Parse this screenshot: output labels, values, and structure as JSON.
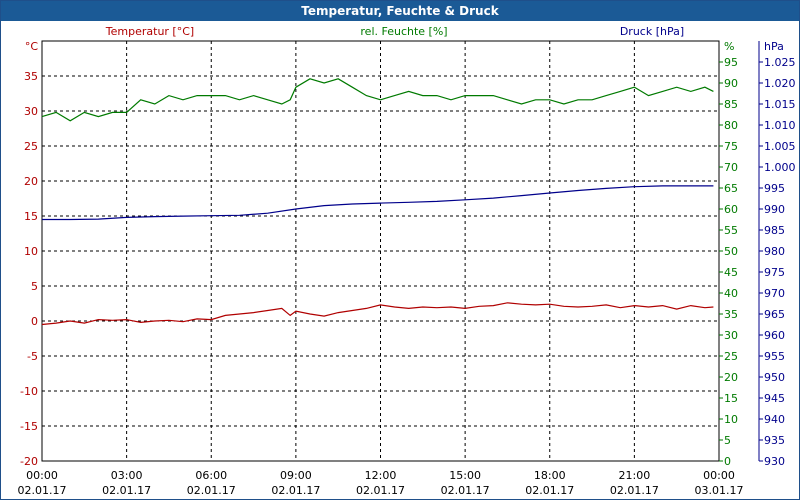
{
  "window": {
    "title": "Temperatur, Feuchte & Druck"
  },
  "colors": {
    "temperature": "#b00000",
    "humidity": "#007a00",
    "pressure": "#00008b",
    "grid": "#000000",
    "titlebar": "#1b5a96"
  },
  "chart_data": {
    "type": "line",
    "title": "Temperatur, Feuchte & Druck",
    "grid": true,
    "x": {
      "ticks": [
        {
          "time": "00:00",
          "date": "02.01.17"
        },
        {
          "time": "03:00",
          "date": "02.01.17"
        },
        {
          "time": "06:00",
          "date": "02.01.17"
        },
        {
          "time": "09:00",
          "date": "02.01.17"
        },
        {
          "time": "12:00",
          "date": "02.01.17"
        },
        {
          "time": "15:00",
          "date": "02.01.17"
        },
        {
          "time": "18:00",
          "date": "02.01.17"
        },
        {
          "time": "21:00",
          "date": "02.01.17"
        },
        {
          "time": "00:00",
          "date": "03.01.17"
        }
      ],
      "range_hours": [
        0,
        24
      ]
    },
    "axes": {
      "temperature": {
        "label": "Temperatur [°C]",
        "unit": "°C",
        "ylim": [
          -20,
          40
        ],
        "ticks": [
          "-20",
          "-15",
          "-10",
          "-5",
          "0",
          "5",
          "10",
          "15",
          "20",
          "25",
          "30",
          "35"
        ]
      },
      "humidity": {
        "label": "rel. Feuchte [%]",
        "unit": "%",
        "ylim": [
          0,
          100
        ],
        "ticks": [
          "0",
          "5",
          "10",
          "15",
          "20",
          "25",
          "30",
          "35",
          "40",
          "45",
          "50",
          "55",
          "60",
          "65",
          "70",
          "75",
          "80",
          "85",
          "90",
          "95"
        ]
      },
      "pressure": {
        "label": "Druck [hPa]",
        "unit": "hPa",
        "ylim": [
          930,
          1030
        ],
        "ticks": [
          "930",
          "935",
          "940",
          "945",
          "950",
          "955",
          "960",
          "965",
          "970",
          "975",
          "980",
          "985",
          "990",
          "995",
          "1.000",
          "1.005",
          "1.010",
          "1.015",
          "1.020",
          "1.025"
        ]
      }
    },
    "series": [
      {
        "name": "Temperatur [°C]",
        "axis": "temperature",
        "x": [
          0,
          0.5,
          1,
          1.5,
          2,
          2.5,
          3,
          3.5,
          4,
          4.5,
          5,
          5.5,
          6,
          6.5,
          7,
          7.5,
          8,
          8.5,
          8.8,
          9,
          9.5,
          10,
          10.5,
          11,
          11.5,
          12,
          12.5,
          13,
          13.5,
          14,
          14.5,
          15,
          15.5,
          16,
          16.5,
          17,
          17.5,
          18,
          18.5,
          19,
          19.5,
          20,
          20.5,
          21,
          21.5,
          22,
          22.5,
          23,
          23.5,
          23.8
        ],
        "values": [
          -0.5,
          -0.3,
          0,
          -0.3,
          0.2,
          0.1,
          0.2,
          -0.2,
          0,
          0.1,
          -0.1,
          0.3,
          0.2,
          0.8,
          1.0,
          1.2,
          1.5,
          1.8,
          0.8,
          1.4,
          1.0,
          0.7,
          1.2,
          1.5,
          1.8,
          2.3,
          2.0,
          1.8,
          2.0,
          1.9,
          2.0,
          1.8,
          2.1,
          2.2,
          2.6,
          2.4,
          2.3,
          2.4,
          2.1,
          2.0,
          2.1,
          2.3,
          1.9,
          2.2,
          2.0,
          2.2,
          1.7,
          2.2,
          1.9,
          2.0
        ]
      },
      {
        "name": "rel. Feuchte [%]",
        "axis": "humidity",
        "x": [
          0,
          0.5,
          1,
          1.5,
          2,
          2.5,
          3,
          3.5,
          4,
          4.5,
          5,
          5.5,
          6,
          6.5,
          7,
          7.5,
          8,
          8.5,
          8.8,
          9,
          9.5,
          10,
          10.5,
          11,
          11.5,
          12,
          12.5,
          13,
          13.5,
          14,
          14.5,
          15,
          15.5,
          16,
          16.5,
          17,
          17.5,
          18,
          18.5,
          19,
          19.5,
          20,
          20.5,
          21,
          21.5,
          22,
          22.5,
          23,
          23.5,
          23.8
        ],
        "values": [
          82,
          83,
          81,
          83,
          82,
          83,
          83,
          86,
          85,
          87,
          86,
          87,
          87,
          87,
          86,
          87,
          86,
          85,
          86,
          89,
          91,
          90,
          91,
          89,
          87,
          86,
          87,
          88,
          87,
          87,
          86,
          87,
          87,
          87,
          86,
          85,
          86,
          86,
          85,
          86,
          86,
          87,
          88,
          89,
          87,
          88,
          89,
          88,
          89,
          88
        ]
      },
      {
        "name": "Druck [hPa]",
        "axis": "pressure",
        "x": [
          0,
          1,
          2,
          3,
          4,
          5,
          6,
          7,
          8,
          9,
          10,
          11,
          12,
          13,
          14,
          15,
          16,
          17,
          18,
          19,
          20,
          21,
          22,
          23,
          23.8
        ],
        "values": [
          987.5,
          987.5,
          987.6,
          988.0,
          988.2,
          988.3,
          988.4,
          988.5,
          989.0,
          990.0,
          990.8,
          991.2,
          991.4,
          991.6,
          991.8,
          992.2,
          992.6,
          993.2,
          993.8,
          994.4,
          994.9,
          995.3,
          995.5,
          995.5,
          995.5
        ]
      }
    ]
  }
}
